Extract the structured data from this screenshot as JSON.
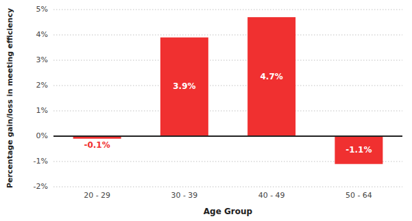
{
  "chart_data": {
    "type": "bar",
    "categories": [
      "20 - 29",
      "30 - 39",
      "40 - 49",
      "50 - 64"
    ],
    "values": [
      -0.1,
      3.9,
      4.7,
      -1.1
    ],
    "value_labels": [
      "-0.1%",
      "3.9%",
      "4.7%",
      "-1.1%"
    ],
    "data_labels": true,
    "color": "#f03030",
    "xlabel": "Age Group",
    "ylabel": "Percentage gain/loss in meeting efficiency",
    "ylim": [
      -2,
      5
    ],
    "yticks": [
      {
        "value": -2,
        "label": "-2%"
      },
      {
        "value": -1,
        "label": "-1%"
      },
      {
        "value": 0,
        "label": "0%"
      },
      {
        "value": 1,
        "label": "1%"
      },
      {
        "value": 2,
        "label": "2%"
      },
      {
        "value": 3,
        "label": "3%"
      },
      {
        "value": 4,
        "label": "4%"
      },
      {
        "value": 5,
        "label": "5%"
      }
    ],
    "grid": true
  }
}
